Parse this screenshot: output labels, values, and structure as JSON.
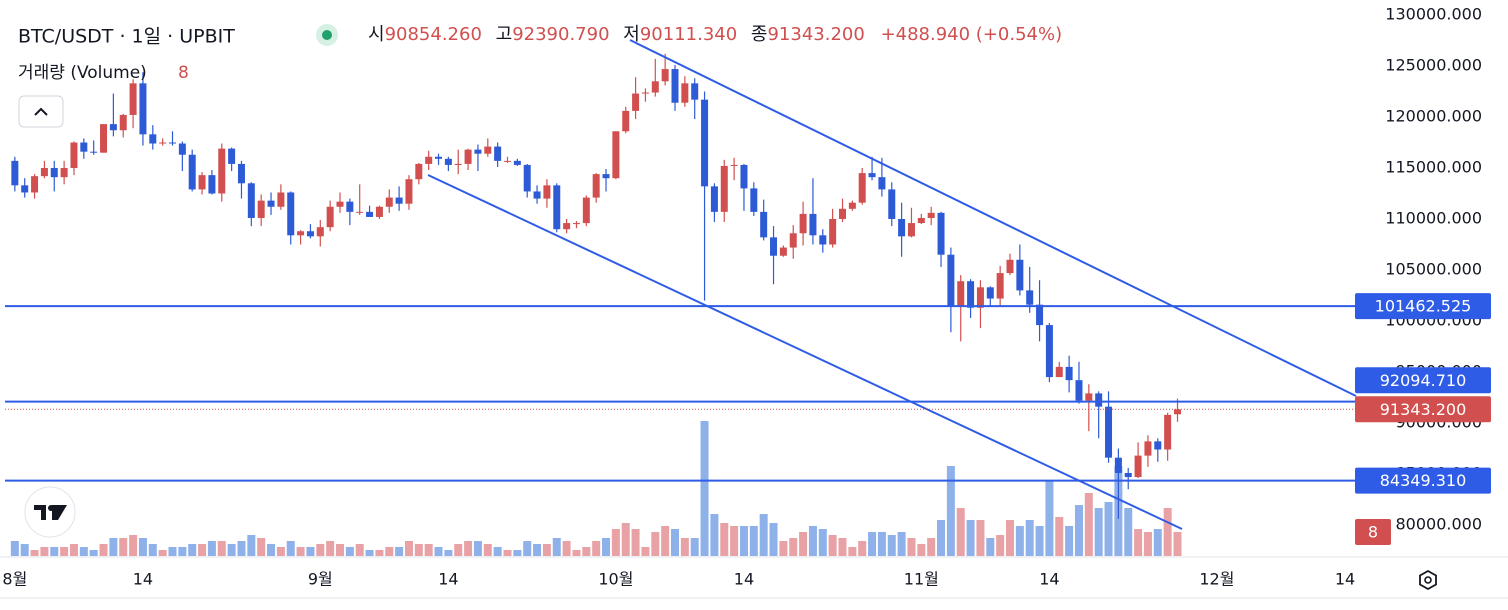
{
  "header": {
    "symbol": "BTC/USDT · 1일 · UPBIT",
    "open_label": "시",
    "open": "90854.260",
    "high_label": "고",
    "high": "92390.790",
    "low_label": "저",
    "low": "90111.340",
    "close_label": "종",
    "close": "91343.200",
    "change": "+488.940 (+0.54%)",
    "volume_label": "거래량 (Volume)"
  },
  "chart_data": {
    "type": "candlestick",
    "up_color": "#d24f4f",
    "down_color": "#2d5bd6",
    "up_volume_color": "#e8a2a6",
    "down_volume_color": "#8fb1ea",
    "ylim": [
      76960,
      130980
    ],
    "yticks": [
      {
        "value": 80000,
        "label": "80000.000"
      },
      {
        "value": 85000,
        "label": "85000.000"
      },
      {
        "value": 90000,
        "label": "90000.000"
      },
      {
        "value": 95000,
        "label": "95000.000"
      },
      {
        "value": 100000,
        "label": "100000.000"
      },
      {
        "value": 105000,
        "label": "105000.000"
      },
      {
        "value": 110000,
        "label": "110000.000"
      },
      {
        "value": 115000,
        "label": "115000.000"
      },
      {
        "value": 120000,
        "label": "120000.000"
      },
      {
        "value": 125000,
        "label": "125000.000"
      },
      {
        "value": 130000,
        "label": "130000.000"
      }
    ],
    "xlim": [
      "07-31",
      "12-14"
    ],
    "xticks": [
      {
        "value": "08-01",
        "label": "8월"
      },
      {
        "value": "08-14",
        "label": "14"
      },
      {
        "value": "09-01",
        "label": "9월"
      },
      {
        "value": "09-14",
        "label": "14"
      },
      {
        "value": "10-01",
        "label": "10월"
      },
      {
        "value": "10-14",
        "label": "14"
      },
      {
        "value": "11-01",
        "label": "11월"
      },
      {
        "value": "11-14",
        "label": "14"
      },
      {
        "value": "12-01",
        "label": "12월"
      },
      {
        "value": "12-14",
        "label": "14"
      }
    ],
    "x": [
      "08-01",
      "08-02",
      "08-03",
      "08-04",
      "08-05",
      "08-06",
      "08-07",
      "08-08",
      "08-09",
      "08-10",
      "08-11",
      "08-12",
      "08-13",
      "08-14",
      "08-15",
      "08-16",
      "08-17",
      "08-18",
      "08-19",
      "08-20",
      "08-21",
      "08-22",
      "08-23",
      "08-24",
      "08-25",
      "08-26",
      "08-27",
      "08-28",
      "08-29",
      "08-30",
      "08-31",
      "09-01",
      "09-02",
      "09-03",
      "09-04",
      "09-05",
      "09-06",
      "09-07",
      "09-08",
      "09-09",
      "09-10",
      "09-11",
      "09-12",
      "09-13",
      "09-14",
      "09-15",
      "09-16",
      "09-17",
      "09-18",
      "09-19",
      "09-20",
      "09-21",
      "09-22",
      "09-23",
      "09-24",
      "09-25",
      "09-26",
      "09-27",
      "09-28",
      "09-29",
      "09-30",
      "10-01",
      "10-02",
      "10-03",
      "10-04",
      "10-05",
      "10-06",
      "10-07",
      "10-08",
      "10-09",
      "10-10",
      "10-11",
      "10-12",
      "10-13",
      "10-14",
      "10-15",
      "10-16",
      "10-17",
      "10-18",
      "10-19",
      "10-20",
      "10-21",
      "10-22",
      "10-23",
      "10-24",
      "10-25",
      "10-26",
      "10-27",
      "10-28",
      "10-29",
      "10-30",
      "10-31",
      "11-01",
      "11-02",
      "11-03",
      "11-04",
      "11-05",
      "11-06",
      "11-07",
      "11-08",
      "11-09",
      "11-10",
      "11-11",
      "11-12",
      "11-13",
      "11-14",
      "11-15",
      "11-16",
      "11-17",
      "11-18",
      "11-19",
      "11-20",
      "11-21",
      "11-22",
      "11-23",
      "11-24",
      "11-25",
      "11-26",
      "11-27"
    ],
    "ohlc": [
      [
        115700,
        116100,
        112700,
        113300
      ],
      [
        113300,
        114000,
        112100,
        112600
      ],
      [
        112600,
        114400,
        112000,
        114200
      ],
      [
        114200,
        115700,
        114000,
        115000
      ],
      [
        115000,
        115700,
        112700,
        114100
      ],
      [
        114100,
        115700,
        113400,
        115000
      ],
      [
        115000,
        117600,
        114300,
        117500
      ],
      [
        117500,
        117900,
        115900,
        116600
      ],
      [
        116600,
        117700,
        116300,
        116500
      ],
      [
        116500,
        119300,
        116500,
        119300
      ],
      [
        119300,
        122300,
        118100,
        118700
      ],
      [
        118700,
        120300,
        118000,
        120200
      ],
      [
        120200,
        123700,
        118900,
        123300
      ],
      [
        123300,
        124400,
        117200,
        118300
      ],
      [
        118300,
        119200,
        116800,
        117400
      ],
      [
        117400,
        117900,
        117200,
        117500
      ],
      [
        117500,
        118600,
        117200,
        117400
      ],
      [
        117400,
        117600,
        114700,
        116300
      ],
      [
        116300,
        116800,
        112700,
        112900
      ],
      [
        112900,
        114600,
        112400,
        114300
      ],
      [
        114300,
        114800,
        112400,
        112500
      ],
      [
        112500,
        117400,
        111700,
        116900
      ],
      [
        116900,
        117000,
        114700,
        115400
      ],
      [
        115400,
        115700,
        112000,
        113500
      ],
      [
        113500,
        113600,
        109300,
        110100
      ],
      [
        110100,
        112400,
        109300,
        111800
      ],
      [
        111800,
        112600,
        110400,
        111200
      ],
      [
        111200,
        113400,
        110900,
        112600
      ],
      [
        112600,
        112700,
        107500,
        108400
      ],
      [
        108400,
        108900,
        107500,
        108800
      ],
      [
        108800,
        109500,
        108100,
        108300
      ],
      [
        108300,
        109900,
        107300,
        109200
      ],
      [
        109200,
        111800,
        108800,
        111200
      ],
      [
        111200,
        112600,
        110600,
        111700
      ],
      [
        111700,
        112000,
        109400,
        110700
      ],
      [
        110700,
        113400,
        110400,
        110700
      ],
      [
        110700,
        111300,
        110200,
        110200
      ],
      [
        110200,
        111300,
        110000,
        111200
      ],
      [
        111200,
        112900,
        110600,
        112100
      ],
      [
        112100,
        113200,
        110800,
        111500
      ],
      [
        111500,
        114300,
        110900,
        113900
      ],
      [
        113900,
        115500,
        113400,
        115400
      ],
      [
        115400,
        116700,
        114800,
        116100
      ],
      [
        116100,
        116400,
        115300,
        115900
      ],
      [
        115900,
        116100,
        114700,
        115300
      ],
      [
        115300,
        116800,
        114400,
        115400
      ],
      [
        115400,
        116900,
        114800,
        116800
      ],
      [
        116800,
        117300,
        114700,
        116400
      ],
      [
        116400,
        117900,
        116100,
        117100
      ],
      [
        117100,
        117500,
        115100,
        115700
      ],
      [
        115700,
        116100,
        115500,
        115700
      ],
      [
        115700,
        115900,
        115200,
        115300
      ],
      [
        115300,
        115400,
        112100,
        112700
      ],
      [
        112700,
        113300,
        111500,
        112000
      ],
      [
        112000,
        113900,
        111100,
        113300
      ],
      [
        113300,
        113500,
        108700,
        109000
      ],
      [
        109000,
        110000,
        108600,
        109600
      ],
      [
        109600,
        109800,
        109100,
        109600
      ],
      [
        109600,
        112300,
        109300,
        112100
      ],
      [
        112100,
        114500,
        111600,
        114400
      ],
      [
        114400,
        114900,
        112700,
        114000
      ],
      [
        114000,
        118600,
        113900,
        118600
      ],
      [
        118600,
        121000,
        118400,
        120600
      ],
      [
        120600,
        123900,
        119800,
        122300
      ],
      [
        122300,
        122800,
        121500,
        122400
      ],
      [
        122400,
        125700,
        122000,
        123500
      ],
      [
        123500,
        126200,
        123100,
        124700
      ],
      [
        124700,
        125100,
        120600,
        121400
      ],
      [
        121400,
        124000,
        121000,
        123300
      ],
      [
        123300,
        123800,
        119800,
        121700
      ],
      [
        121700,
        122500,
        102000,
        113200
      ],
      [
        113200,
        113500,
        109700,
        110700
      ],
      [
        110700,
        115800,
        109700,
        115200
      ],
      [
        115200,
        116000,
        113800,
        115300
      ],
      [
        115300,
        115400,
        110800,
        113000
      ],
      [
        113000,
        113600,
        110300,
        110700
      ],
      [
        110700,
        111900,
        107900,
        108200
      ],
      [
        108200,
        109300,
        103600,
        106400
      ],
      [
        106400,
        107400,
        106300,
        107200
      ],
      [
        107200,
        109400,
        106100,
        108600
      ],
      [
        108600,
        111700,
        107400,
        110500
      ],
      [
        110500,
        114000,
        107500,
        108400
      ],
      [
        108400,
        109000,
        106700,
        107500
      ],
      [
        107500,
        111000,
        107200,
        110000
      ],
      [
        110000,
        112000,
        109700,
        111000
      ],
      [
        111000,
        111800,
        110800,
        111600
      ],
      [
        111600,
        115000,
        111400,
        114500
      ],
      [
        114500,
        116100,
        113800,
        114100
      ],
      [
        114100,
        116000,
        112200,
        112900
      ],
      [
        112900,
        113600,
        109300,
        110000
      ],
      [
        110000,
        111600,
        106300,
        108300
      ],
      [
        108300,
        111100,
        108200,
        109600
      ],
      [
        109600,
        110500,
        109500,
        110100
      ],
      [
        110100,
        111200,
        109400,
        110600
      ],
      [
        110600,
        110700,
        105300,
        106500
      ],
      [
        106500,
        107200,
        98900,
        101500
      ],
      [
        101500,
        104500,
        98000,
        103900
      ],
      [
        103900,
        104100,
        100300,
        101300
      ],
      [
        101300,
        104000,
        99300,
        103300
      ],
      [
        103300,
        103400,
        101400,
        102200
      ],
      [
        102200,
        105400,
        101500,
        104700
      ],
      [
        104700,
        106600,
        104500,
        106000
      ],
      [
        106000,
        107500,
        102500,
        103000
      ],
      [
        103000,
        105300,
        100800,
        101600
      ],
      [
        101600,
        104000,
        98000,
        99600
      ],
      [
        99600,
        99800,
        94000,
        94500
      ],
      [
        94500,
        96000,
        94500,
        95500
      ],
      [
        95500,
        96600,
        93000,
        94200
      ],
      [
        94200,
        96000,
        91900,
        92200
      ],
      [
        92200,
        93800,
        89200,
        92900
      ],
      [
        92900,
        93100,
        88500,
        91600
      ],
      [
        91600,
        93100,
        86100,
        86600
      ],
      [
        86600,
        87500,
        80600,
        85100
      ],
      [
        85100,
        85600,
        83500,
        84700
      ],
      [
        84700,
        88100,
        84600,
        86800
      ],
      [
        86800,
        88800,
        85700,
        88200
      ],
      [
        88200,
        88500,
        86200,
        87400
      ],
      [
        87400,
        91000,
        86300,
        90800
      ],
      [
        90854.26,
        92390.79,
        90111.34,
        91343.2
      ]
    ],
    "volume": [
      5,
      4,
      2,
      3,
      3,
      3,
      4,
      3,
      2,
      4,
      6,
      6,
      7,
      6,
      4,
      2,
      3,
      3,
      4,
      4,
      5,
      5,
      4,
      5,
      7,
      6,
      4,
      3,
      5,
      3,
      3,
      4,
      5,
      4,
      3,
      4,
      2,
      2,
      3,
      3,
      5,
      4,
      4,
      3,
      2,
      4,
      5,
      5,
      4,
      3,
      2,
      2,
      5,
      4,
      4,
      6,
      5,
      2,
      3,
      5,
      6,
      9,
      11,
      9,
      3,
      8,
      10,
      9,
      6,
      6,
      45,
      14,
      11,
      10,
      10,
      10,
      14,
      11,
      5,
      6,
      8,
      10,
      9,
      7,
      6,
      3,
      5,
      8,
      8,
      7,
      8,
      6,
      4,
      6,
      12,
      30,
      16,
      12,
      12,
      6,
      7,
      12,
      10,
      12,
      10,
      25,
      13,
      10,
      17,
      21,
      16,
      18,
      30,
      16,
      9,
      8,
      9,
      16,
      8
    ],
    "price_lines": [
      {
        "value": 101462.525,
        "label": "101462.525"
      },
      {
        "value": 92094.71,
        "label": "92094.710"
      },
      {
        "value": 84349.31,
        "label": "84349.310"
      }
    ],
    "line_color": "#2f5ce6",
    "current_price": {
      "value": 91343.2,
      "label": "91343.200"
    }
  }
}
